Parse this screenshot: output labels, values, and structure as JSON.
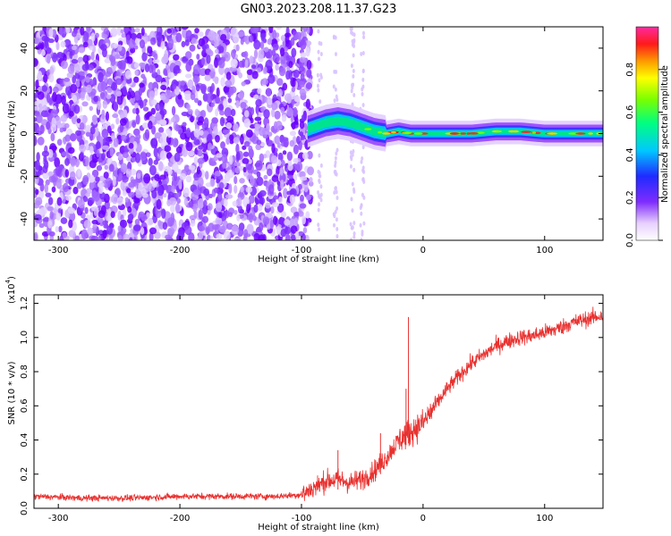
{
  "title": "GN03.2023.208.11.37.G23",
  "chart_data": [
    {
      "type": "heatmap",
      "title": "GN03.2023.208.11.37.G23",
      "xlabel": "Height of straight line (km)",
      "ylabel": "Frequency (Hz)",
      "xlim": [
        -320,
        148
      ],
      "ylim": [
        -50,
        50
      ],
      "xticks": [
        "-300",
        "-200",
        "-100",
        "0",
        "100"
      ],
      "yticks": [
        "-40",
        "-20",
        "0",
        "20",
        "40"
      ],
      "colorbar": {
        "label": "Normalized spectral amplitude",
        "range": [
          0.0,
          1.0
        ],
        "ticks": [
          "0.0",
          "0.2",
          "0.4",
          "0.6",
          "0.8"
        ]
      },
      "grid": false,
      "signal_trace": {
        "x": [
          -95,
          -80,
          -70,
          -60,
          -50,
          -40,
          -30,
          -20,
          -10,
          0,
          20,
          40,
          60,
          80,
          100,
          120,
          148
        ],
        "frequency": [
          2,
          5,
          6,
          5,
          3,
          1,
          0,
          1,
          0,
          0,
          0,
          0,
          1,
          1,
          0,
          0,
          0
        ]
      },
      "noise_region": [
        -320,
        -92
      ]
    },
    {
      "type": "line",
      "xlabel": "Height of straight line (km)",
      "ylabel": "SNR (10 * v/v)",
      "y_multiplier": "(x10",
      "y_multiplier_exp": "4",
      "xlim": [
        -320,
        148
      ],
      "ylim": [
        0.0,
        1.25
      ],
      "xticks": [
        "-300",
        "-200",
        "-100",
        "0",
        "100"
      ],
      "yticks": [
        "0.0",
        "0.2",
        "0.4",
        "0.6",
        "0.8",
        "1.0",
        "1.2"
      ],
      "grid": false,
      "series": [
        {
          "color": "#e8312f",
          "x": [
            -320,
            -280,
            -240,
            -200,
            -160,
            -120,
            -100,
            -90,
            -80,
            -70,
            -60,
            -50,
            -40,
            -30,
            -20,
            -10,
            0,
            10,
            20,
            30,
            40,
            50,
            60,
            70,
            80,
            90,
            100,
            110,
            120,
            130,
            148
          ],
          "values": [
            0.07,
            0.06,
            0.06,
            0.07,
            0.07,
            0.07,
            0.08,
            0.12,
            0.16,
            0.17,
            0.15,
            0.17,
            0.22,
            0.3,
            0.4,
            0.45,
            0.5,
            0.6,
            0.7,
            0.78,
            0.85,
            0.9,
            0.95,
            0.98,
            1.0,
            1.01,
            1.03,
            1.05,
            1.08,
            1.1,
            1.13
          ]
        }
      ],
      "spikes": [
        {
          "x": -12,
          "value": 1.12
        },
        {
          "x": -14,
          "value": 0.7
        },
        {
          "x": -35,
          "value": 0.44
        },
        {
          "x": -70,
          "value": 0.34
        }
      ]
    }
  ]
}
